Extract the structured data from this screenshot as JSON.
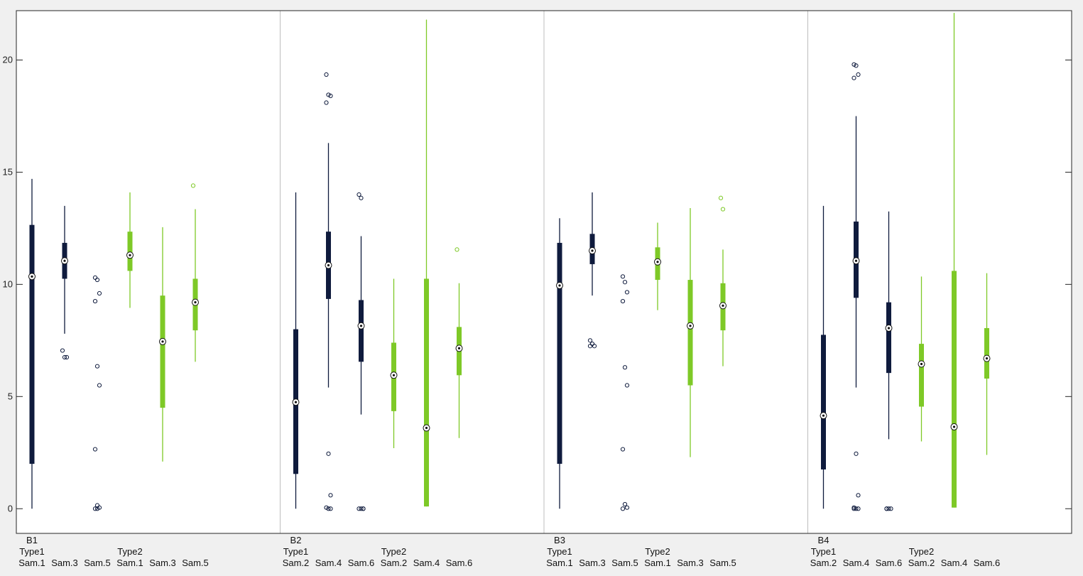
{
  "chart_data": {
    "type": "boxplot",
    "ylim": [
      -1.1,
      22.2
    ],
    "yticks": [
      0,
      5,
      10,
      15,
      20
    ],
    "grid": false,
    "colors": {
      "Type1": "#0f1b3d",
      "Type2": "#7ec927"
    },
    "groups": [
      {
        "name": "B1",
        "boxes": [
          {
            "type_label": "Type1",
            "sample": "Sam.1",
            "type": "Type1",
            "whisker_low": 0.0,
            "q1": 2.0,
            "median": 10.35,
            "q3": 12.65,
            "whisker_high": 14.7,
            "outliers": []
          },
          {
            "type_label": "",
            "sample": "Sam.3",
            "type": "Type1",
            "whisker_low": 7.8,
            "q1": 10.25,
            "median": 11.05,
            "q3": 11.85,
            "whisker_high": 13.5,
            "outliers": [
              7.05,
              6.75,
              6.75
            ]
          },
          {
            "type_label": "",
            "sample": "Sam.5",
            "type": "Type1",
            "whisker_low": null,
            "q1": null,
            "median": null,
            "q3": null,
            "whisker_high": null,
            "outliers": [
              10.3,
              10.2,
              9.6,
              9.25,
              6.35,
              5.5,
              2.65,
              0.15,
              0.05,
              0.0,
              0.0
            ]
          },
          {
            "type_label": "Type2",
            "sample": "Sam.1",
            "type": "Type2",
            "whisker_low": 8.95,
            "q1": 10.6,
            "median": 11.3,
            "q3": 12.35,
            "whisker_high": 14.1,
            "outliers": []
          },
          {
            "type_label": "",
            "sample": "Sam.3",
            "type": "Type2",
            "whisker_low": 2.1,
            "q1": 4.5,
            "median": 7.45,
            "q3": 9.5,
            "whisker_high": 12.55,
            "outliers": []
          },
          {
            "type_label": "",
            "sample": "Sam.5",
            "type": "Type2",
            "whisker_low": 6.55,
            "q1": 7.95,
            "median": 9.2,
            "q3": 10.25,
            "whisker_high": 13.35,
            "outliers": [
              14.4
            ]
          }
        ]
      },
      {
        "name": "B2",
        "boxes": [
          {
            "type_label": "Type1",
            "sample": "Sam.2",
            "type": "Type1",
            "whisker_low": 0.0,
            "q1": 1.55,
            "median": 4.75,
            "q3": 8.0,
            "whisker_high": 14.1,
            "outliers": []
          },
          {
            "type_label": "",
            "sample": "Sam.4",
            "type": "Type1",
            "whisker_low": 5.4,
            "q1": 9.35,
            "median": 10.85,
            "q3": 12.35,
            "whisker_high": 16.3,
            "outliers": [
              19.35,
              18.45,
              18.4,
              18.1,
              2.45,
              0.6,
              0.05,
              0.0,
              0.0
            ]
          },
          {
            "type_label": "",
            "sample": "Sam.6",
            "type": "Type1",
            "whisker_low": 4.2,
            "q1": 6.55,
            "median": 8.15,
            "q3": 9.3,
            "whisker_high": 12.15,
            "outliers": [
              14.0,
              13.85,
              0.0,
              0.0,
              0.0,
              0.0
            ]
          },
          {
            "type_label": "Type2",
            "sample": "Sam.2",
            "type": "Type2",
            "whisker_low": 2.7,
            "q1": 4.35,
            "median": 5.95,
            "q3": 7.4,
            "whisker_high": 10.25,
            "outliers": []
          },
          {
            "type_label": "",
            "sample": "Sam.4",
            "type": "Type2",
            "whisker_low": 0.1,
            "q1": 0.1,
            "median": 3.6,
            "q3": 10.25,
            "whisker_high": 21.8,
            "outliers": []
          },
          {
            "type_label": "",
            "sample": "Sam.6",
            "type": "Type2",
            "whisker_low": 3.15,
            "q1": 5.95,
            "median": 7.15,
            "q3": 8.1,
            "whisker_high": 10.05,
            "outliers": [
              11.55
            ]
          }
        ]
      },
      {
        "name": "B3",
        "boxes": [
          {
            "type_label": "Type1",
            "sample": "Sam.1",
            "type": "Type1",
            "whisker_low": 0.0,
            "q1": 2.0,
            "median": 9.95,
            "q3": 11.85,
            "whisker_high": 12.95,
            "outliers": []
          },
          {
            "type_label": "",
            "sample": "Sam.3",
            "type": "Type1",
            "whisker_low": 9.5,
            "q1": 10.9,
            "median": 11.5,
            "q3": 12.25,
            "whisker_high": 14.1,
            "outliers": [
              7.5,
              7.35,
              7.25,
              7.25
            ]
          },
          {
            "type_label": "",
            "sample": "Sam.5",
            "type": "Type1",
            "whisker_low": null,
            "q1": null,
            "median": null,
            "q3": null,
            "whisker_high": null,
            "outliers": [
              10.35,
              10.1,
              9.65,
              9.25,
              6.3,
              5.5,
              2.65,
              0.2,
              0.05,
              0.0
            ]
          },
          {
            "type_label": "Type2",
            "sample": "Sam.1",
            "type": "Type2",
            "whisker_low": 8.85,
            "q1": 10.2,
            "median": 11.0,
            "q3": 11.65,
            "whisker_high": 12.75,
            "outliers": []
          },
          {
            "type_label": "",
            "sample": "Sam.3",
            "type": "Type2",
            "whisker_low": 2.3,
            "q1": 5.5,
            "median": 8.15,
            "q3": 10.2,
            "whisker_high": 13.4,
            "outliers": []
          },
          {
            "type_label": "",
            "sample": "Sam.5",
            "type": "Type2",
            "whisker_low": 6.35,
            "q1": 7.95,
            "median": 9.05,
            "q3": 10.05,
            "whisker_high": 11.55,
            "outliers": [
              13.85,
              13.35
            ]
          }
        ]
      },
      {
        "name": "B4",
        "boxes": [
          {
            "type_label": "Type1",
            "sample": "Sam.2",
            "type": "Type1",
            "whisker_low": 0.0,
            "q1": 1.75,
            "median": 4.15,
            "q3": 7.75,
            "whisker_high": 13.5,
            "outliers": []
          },
          {
            "type_label": "",
            "sample": "Sam.4",
            "type": "Type1",
            "whisker_low": 5.4,
            "q1": 9.4,
            "median": 11.05,
            "q3": 12.8,
            "whisker_high": 17.5,
            "outliers": [
              19.8,
              19.75,
              19.35,
              19.2,
              2.45,
              0.6,
              0.05,
              0.0,
              0.0,
              0.0
            ]
          },
          {
            "type_label": "",
            "sample": "Sam.6",
            "type": "Type1",
            "whisker_low": 3.1,
            "q1": 6.05,
            "median": 8.05,
            "q3": 9.2,
            "whisker_high": 13.25,
            "outliers": [
              0.0,
              0.0,
              0.0,
              0.0
            ]
          },
          {
            "type_label": "Type2",
            "sample": "Sam.2",
            "type": "Type2",
            "whisker_low": 3.0,
            "q1": 4.55,
            "median": 6.45,
            "q3": 7.35,
            "whisker_high": 10.35,
            "outliers": []
          },
          {
            "type_label": "",
            "sample": "Sam.4",
            "type": "Type2",
            "whisker_low": 0.05,
            "q1": 0.05,
            "median": 3.65,
            "q3": 10.6,
            "whisker_high": 22.1,
            "outliers": []
          },
          {
            "type_label": "",
            "sample": "Sam.6",
            "type": "Type2",
            "whisker_low": 2.4,
            "q1": 5.8,
            "median": 6.7,
            "q3": 8.05,
            "whisker_high": 10.5,
            "outliers": []
          }
        ]
      }
    ]
  }
}
